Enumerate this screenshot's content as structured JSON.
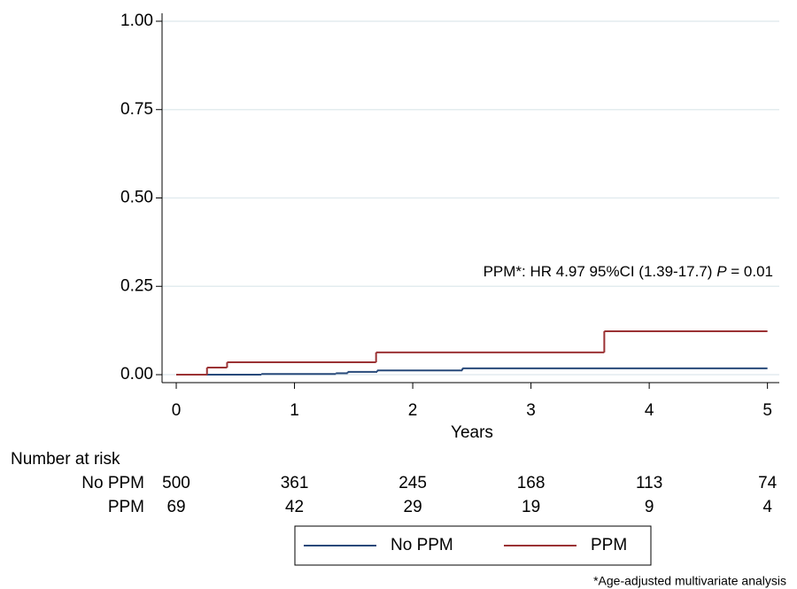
{
  "chart_data": {
    "type": "step",
    "xlabel": "Years",
    "xlim": [
      -0.12,
      5.1
    ],
    "ylim": [
      -0.0225,
      1.0225
    ],
    "xticks": [
      0,
      1,
      2,
      3,
      4,
      5
    ],
    "yticks": [
      {
        "value": 0,
        "label": "0.00"
      },
      {
        "value": 0.25,
        "label": "0.25"
      },
      {
        "value": 0.5,
        "label": "0.50"
      },
      {
        "value": 0.75,
        "label": "0.75"
      },
      {
        "value": 1,
        "label": "1.00"
      }
    ],
    "grid": true,
    "series": [
      {
        "name": "No PPM",
        "color": "#27497a",
        "x": [
          0,
          0.72,
          1.35,
          1.45,
          1.7,
          2.42,
          5
        ],
        "values": [
          0,
          0.002,
          0.004,
          0.008,
          0.012,
          0.018,
          0.018
        ]
      },
      {
        "name": "PPM",
        "color": "#9b3234",
        "x": [
          0,
          0.26,
          0.43,
          1.69,
          3.62,
          5
        ],
        "values": [
          0,
          0.02,
          0.035,
          0.063,
          0.123,
          0.123
        ]
      }
    ],
    "annotation": [
      "PPM*: HR 4.97 95%CI (1.39-17.7) ",
      "P",
      " = 0.01"
    ],
    "risk_table": {
      "title": "Number at risk",
      "rows": [
        {
          "name": "No PPM",
          "values": [
            500,
            361,
            245,
            168,
            113,
            74
          ]
        },
        {
          "name": "PPM",
          "values": [
            69,
            42,
            29,
            19,
            9,
            4
          ]
        }
      ]
    },
    "footnote": "*Age-adjusted multivariate analysis"
  }
}
